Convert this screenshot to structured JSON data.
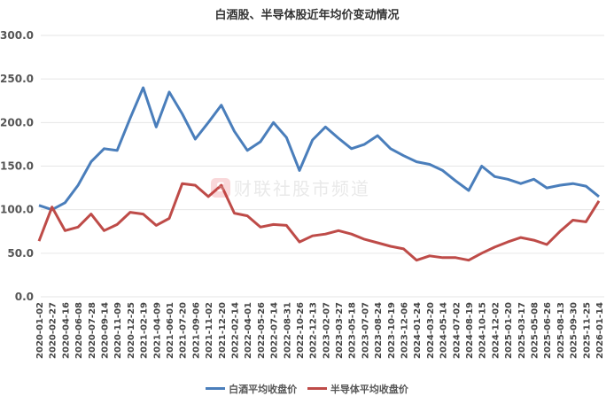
{
  "chart_data": {
    "type": "line",
    "title": "白酒股、半导体股近年均价变动情况",
    "xlabel": "",
    "ylabel": "",
    "ylim": [
      0,
      300
    ],
    "yticks": [
      "0.0",
      "50.0",
      "100.0",
      "150.0",
      "200.0",
      "250.0",
      "300.0"
    ],
    "grid": true,
    "legend_position": "bottom",
    "categories": [
      "2020-01-02",
      "2020-02-27",
      "2020-04-16",
      "2020-06-08",
      "2020-07-28",
      "2020-09-14",
      "2020-11-09",
      "2020-12-25",
      "2021-02-19",
      "2021-04-09",
      "2021-06-01",
      "2021-07-20",
      "2021-09-06",
      "2021-11-02",
      "2021-12-20",
      "2022-02-14",
      "2022-04-01",
      "2022-05-26",
      "2022-07-14",
      "2022-08-31",
      "2022-10-26",
      "2022-12-13",
      "2023-02-07",
      "2023-03-27",
      "2023-05-18",
      "2023-07-07",
      "2023-08-24",
      "2023-10-19",
      "2023-12-06",
      "2024-01-24",
      "2024-03-20",
      "2024-05-14",
      "2024-07-02",
      "2024-08-19",
      "2024-10-15",
      "2024-12-02",
      "2025-01-20",
      "2025-03-17",
      "2025-05-08",
      "2025-06-26",
      "2025-08-13",
      "2025-09-30",
      "2025-11-25",
      "2026-01-14"
    ],
    "series": [
      {
        "name": "白酒平均收盘价",
        "color": "#4a7ebb",
        "values": [
          105,
          100,
          108,
          128,
          155,
          170,
          168,
          205,
          240,
          195,
          235,
          210,
          181,
          200,
          220,
          190,
          168,
          178,
          200,
          183,
          145,
          180,
          195,
          182,
          170,
          175,
          185,
          170,
          162,
          155,
          152,
          145,
          133,
          122,
          150,
          138,
          135,
          130,
          135,
          125,
          128,
          130,
          127,
          115
        ]
      },
      {
        "name": "半导体平均收盘价",
        "color": "#be4b48",
        "values": [
          64,
          103,
          76,
          80,
          95,
          76,
          83,
          97,
          95,
          82,
          90,
          130,
          128,
          115,
          128,
          96,
          93,
          80,
          83,
          82,
          63,
          70,
          72,
          76,
          72,
          66,
          62,
          58,
          55,
          42,
          47,
          45,
          45,
          42,
          50,
          57,
          63,
          68,
          65,
          60,
          75,
          88,
          86,
          110
        ]
      }
    ]
  },
  "watermark": {
    "text": "财联社股市频道",
    "logo": "S"
  }
}
